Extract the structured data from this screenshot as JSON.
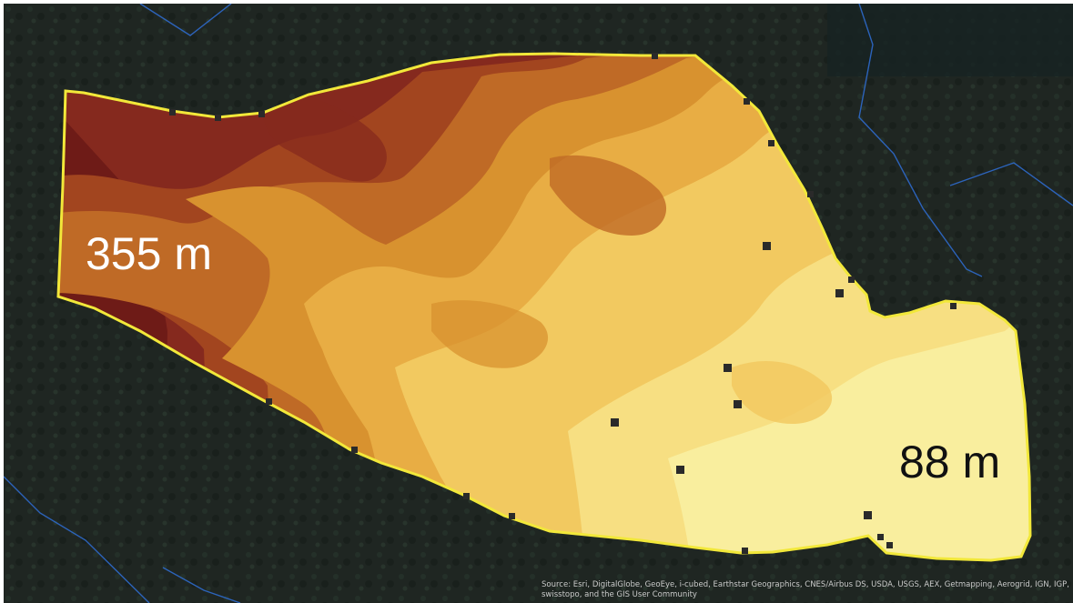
{
  "map": {
    "basemap": "satellite-imagery",
    "boundary_color": "#f2e83a",
    "station_marker_color": "#2a2a2a",
    "stream_line_color": "#2f6fd6",
    "elevation_ramp": [
      "#6e1b17",
      "#85291e",
      "#a2451f",
      "#bf6a26",
      "#d8922f",
      "#e8ad44",
      "#f2c960",
      "#f7df82",
      "#f9ee9e"
    ],
    "elevation_labels": {
      "high": "355 m",
      "low": "88 m"
    },
    "attribution": "Source: Esri, DigitalGlobe, GeoEye, i-cubed, Earthstar Geographics, CNES/Airbus DS, USDA, USGS, AEX, Getmapping, Aerogrid, IGN, IGP, swisstopo, and the GIS User Community"
  }
}
